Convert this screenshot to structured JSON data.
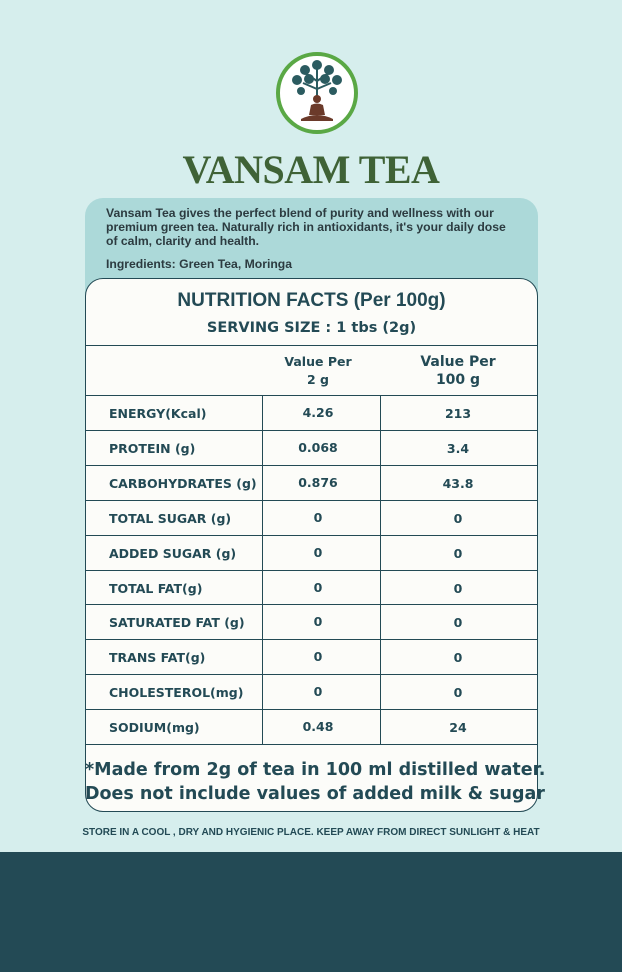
{
  "header": {
    "brand": "VANSAM TEA",
    "description": [
      "Vansam Tea gives the perfect blend of purity and wellness with our",
      "premium green tea. Naturally rich in antioxidants, it's your daily dose",
      "of calm, clarity and health."
    ],
    "ingredients": "Ingredients: Green Tea, Moringa"
  },
  "table": {
    "title": "NUTRITION FACTS (Per 100g)",
    "serving_size": "SERVING SIZE : 1 tbs (2g)",
    "columns": [
      [
        "Value Per",
        "2 g"
      ],
      [
        "Value Per",
        "100 g"
      ]
    ],
    "rows": [
      [
        "ENERGY(Kcal)",
        "4.26",
        "213"
      ],
      [
        "PROTEIN (g)",
        "0.068",
        "3.4"
      ],
      [
        "CARBOHYDRATES (g)",
        "0.876",
        "43.8"
      ],
      [
        "TOTAL SUGAR (g)",
        "0",
        "0"
      ],
      [
        "ADDED SUGAR (g)",
        "0",
        "0"
      ],
      [
        "TOTAL FAT(g)",
        "0",
        "0"
      ],
      [
        "SATURATED FAT (g)",
        "0",
        "0"
      ],
      [
        "TRANS FAT(g)",
        "0",
        "0"
      ],
      [
        "CHOLESTEROL(mg)",
        "0",
        "0"
      ],
      [
        "SODIUM(mg)",
        "0.48",
        "24"
      ]
    ]
  },
  "footnote": [
    "*Made from 2g of tea in 100 ml distilled water.",
    "Does not include values of added milk & sugar"
  ],
  "storage": "STORE IN A COOL , DRY AND HYGIENIC PLACE. KEEP AWAY FROM DIRECT SUNLIGHT & HEAT"
}
